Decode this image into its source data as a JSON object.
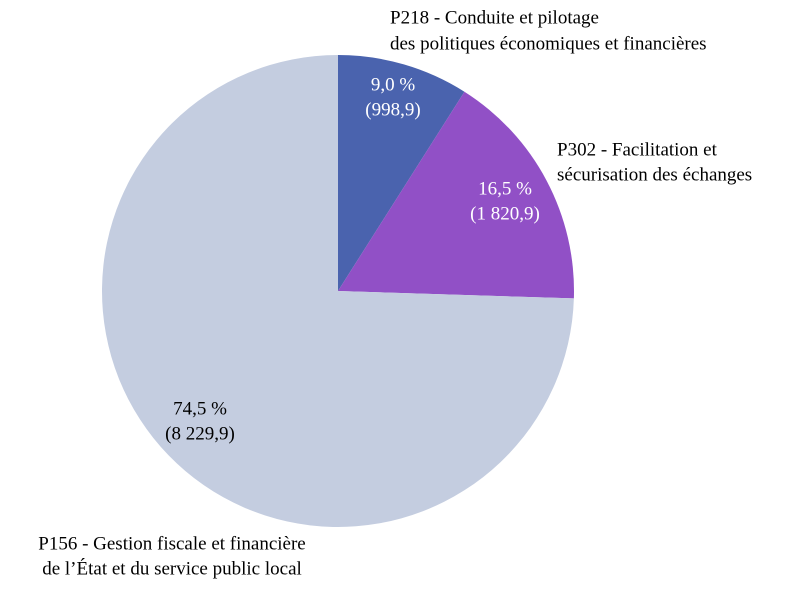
{
  "chart_data": {
    "type": "pie",
    "categories": [
      [
        "P218 - Conduite et pilotage",
        "des politiques économiques et financières"
      ],
      [
        "P302 - Facilitation et",
        "sécurisation des échanges"
      ],
      [
        "P156 - Gestion fiscale et financière",
        "de l’État et du service public local"
      ]
    ],
    "values": [
      9.0,
      16.5,
      74.5
    ],
    "value_labels": [
      "9,0 %",
      "16,5 %",
      "74,5 %"
    ],
    "amounts": [
      998.9,
      1820.9,
      8229.9
    ],
    "amount_labels": [
      "(998,9)",
      "(1 820,9)",
      "(8 229,9)"
    ],
    "colors": [
      "#4a63ae",
      "#9150c6",
      "#c4cde0"
    ]
  }
}
